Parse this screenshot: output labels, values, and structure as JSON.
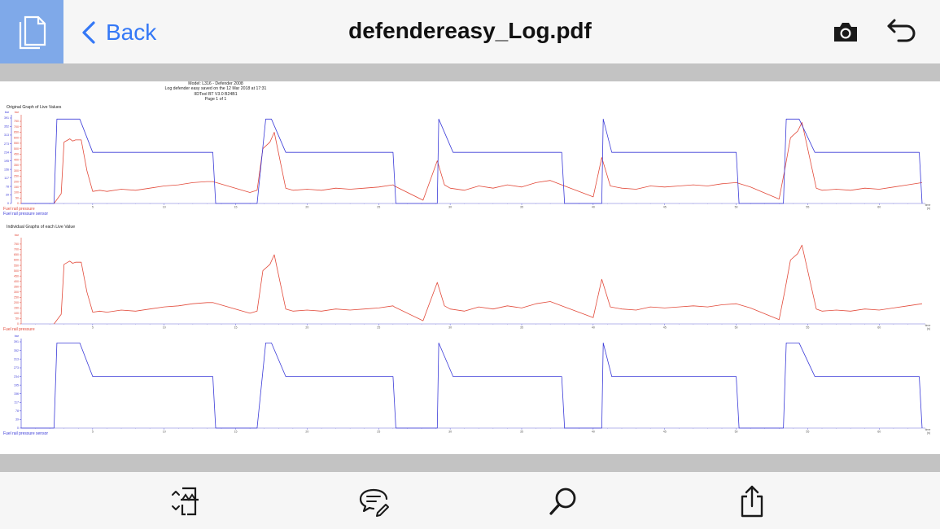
{
  "toolbar": {
    "back_label": "Back",
    "title": "defendereasy_Log.pdf"
  },
  "pdf": {
    "header_lines": [
      "Model: L316 - Defender 2008",
      "Log defender easy saved on the 12 Mar 2018 at 17:31",
      "IIDTool BT V3.0 B24B1",
      "Page 1 of 1"
    ],
    "section1_title": "Original Graph of Live Values",
    "section2_title": "Individual Graphs of each Live Value",
    "unit_bar": "bar",
    "x_axis_label": "time",
    "x_axis_unit": "(s)",
    "legend_pressure": "Fuel rail pressure",
    "legend_sensor": "Fuel rail pressure sensor"
  },
  "chart_data": [
    {
      "type": "line",
      "title": "Original Graph of Live Values",
      "xlabel": "time (s)",
      "x_ticks": [
        5,
        10,
        15,
        20,
        25,
        30,
        35,
        40,
        45,
        50,
        55,
        60
      ],
      "xlim": [
        0,
        63
      ],
      "ylim_left": [
        0,
        391
      ],
      "ylim_right": [
        0,
        780
      ],
      "y_ticks_left": [
        0,
        39,
        78,
        117,
        156,
        195,
        234,
        273,
        313,
        352,
        391
      ],
      "y_ticks_right": [
        0,
        50,
        100,
        150,
        200,
        250,
        300,
        350,
        400,
        450,
        500,
        550,
        600,
        650,
        700,
        750
      ],
      "colors": {
        "pressure": "#e24a3a",
        "sensor": "#3b3bd8"
      },
      "series": [
        {
          "name": "Fuel rail pressure",
          "axis": "right",
          "points": [
            [
              2.3,
              0
            ],
            [
              2.8,
              90
            ],
            [
              3.0,
              560
            ],
            [
              3.4,
              590
            ],
            [
              3.6,
              570
            ],
            [
              3.8,
              580
            ],
            [
              4.2,
              580
            ],
            [
              4.6,
              300
            ],
            [
              5.0,
              110
            ],
            [
              5.5,
              120
            ],
            [
              6,
              110
            ],
            [
              7,
              130
            ],
            [
              8,
              120
            ],
            [
              9,
              140
            ],
            [
              10,
              160
            ],
            [
              11,
              170
            ],
            [
              12,
              190
            ],
            [
              13,
              200
            ],
            [
              13.4,
              200
            ],
            [
              16,
              100
            ],
            [
              16.5,
              120
            ],
            [
              16.9,
              500
            ],
            [
              17.4,
              560
            ],
            [
              17.7,
              650
            ],
            [
              18.5,
              140
            ],
            [
              19,
              120
            ],
            [
              20,
              130
            ],
            [
              21,
              120
            ],
            [
              22,
              140
            ],
            [
              23,
              130
            ],
            [
              24,
              140
            ],
            [
              25,
              150
            ],
            [
              26,
              170
            ],
            [
              26.1,
              160
            ],
            [
              28.1,
              30
            ],
            [
              29.1,
              390
            ],
            [
              29.6,
              170
            ],
            [
              30,
              140
            ],
            [
              31,
              120
            ],
            [
              32,
              160
            ],
            [
              33,
              140
            ],
            [
              34,
              170
            ],
            [
              35,
              150
            ],
            [
              36,
              190
            ],
            [
              37,
              210
            ],
            [
              38,
              160
            ],
            [
              40,
              60
            ],
            [
              40.6,
              420
            ],
            [
              41.2,
              160
            ],
            [
              42,
              140
            ],
            [
              43,
              130
            ],
            [
              44,
              160
            ],
            [
              45,
              150
            ],
            [
              46,
              160
            ],
            [
              47,
              170
            ],
            [
              48,
              160
            ],
            [
              49,
              180
            ],
            [
              50,
              190
            ],
            [
              51,
              150
            ],
            [
              53,
              40
            ],
            [
              53.4,
              310
            ],
            [
              53.8,
              600
            ],
            [
              54.3,
              660
            ],
            [
              54.6,
              740
            ],
            [
              55.6,
              140
            ],
            [
              56,
              120
            ],
            [
              57,
              130
            ],
            [
              58,
              120
            ],
            [
              59,
              140
            ],
            [
              60,
              130
            ],
            [
              61,
              150
            ],
            [
              62,
              170
            ],
            [
              63,
              190
            ]
          ]
        },
        {
          "name": "Fuel rail pressure sensor",
          "axis": "left",
          "points": [
            [
              0,
              0
            ],
            [
              2.3,
              0
            ],
            [
              2.5,
              386
            ],
            [
              4.1,
              386
            ],
            [
              5.0,
              234
            ],
            [
              13.4,
              234
            ],
            [
              13.6,
              0
            ],
            [
              16.5,
              0
            ],
            [
              17.1,
              386
            ],
            [
              17.5,
              386
            ],
            [
              18.5,
              234
            ],
            [
              26.0,
              234
            ],
            [
              26.2,
              0
            ],
            [
              29.1,
              0
            ],
            [
              29.2,
              386
            ],
            [
              30.2,
              234
            ],
            [
              37.8,
              234
            ],
            [
              38.0,
              0
            ],
            [
              40.6,
              0
            ],
            [
              40.7,
              386
            ],
            [
              41.3,
              234
            ],
            [
              50.0,
              234
            ],
            [
              50.2,
              0
            ],
            [
              53.3,
              0
            ],
            [
              53.5,
              386
            ],
            [
              54.4,
              386
            ],
            [
              55.5,
              234
            ],
            [
              62.8,
              234
            ],
            [
              63,
              0
            ]
          ]
        }
      ]
    },
    {
      "type": "line",
      "title": "Individual Graphs of each Live Value",
      "series_name": "Fuel rail pressure",
      "xlabel": "time (s)",
      "ylim": [
        0,
        780
      ],
      "y_ticks": [
        0,
        50,
        100,
        150,
        200,
        250,
        300,
        350,
        400,
        450,
        500,
        550,
        600,
        650,
        700,
        750
      ]
    },
    {
      "type": "line",
      "series_name": "Fuel rail pressure sensor",
      "xlabel": "time (s)",
      "ylim": [
        0,
        391
      ],
      "y_ticks": [
        0,
        39,
        78,
        117,
        156,
        195,
        234,
        273,
        313,
        352,
        391
      ]
    }
  ],
  "icons": {
    "doc": "document-icon",
    "back": "chevron-left-icon",
    "camera": "camera-icon",
    "undo": "undo-icon",
    "tool1": "page-split-icon",
    "tool2": "comment-edit-icon",
    "tool3": "search-icon",
    "tool4": "share-icon"
  }
}
